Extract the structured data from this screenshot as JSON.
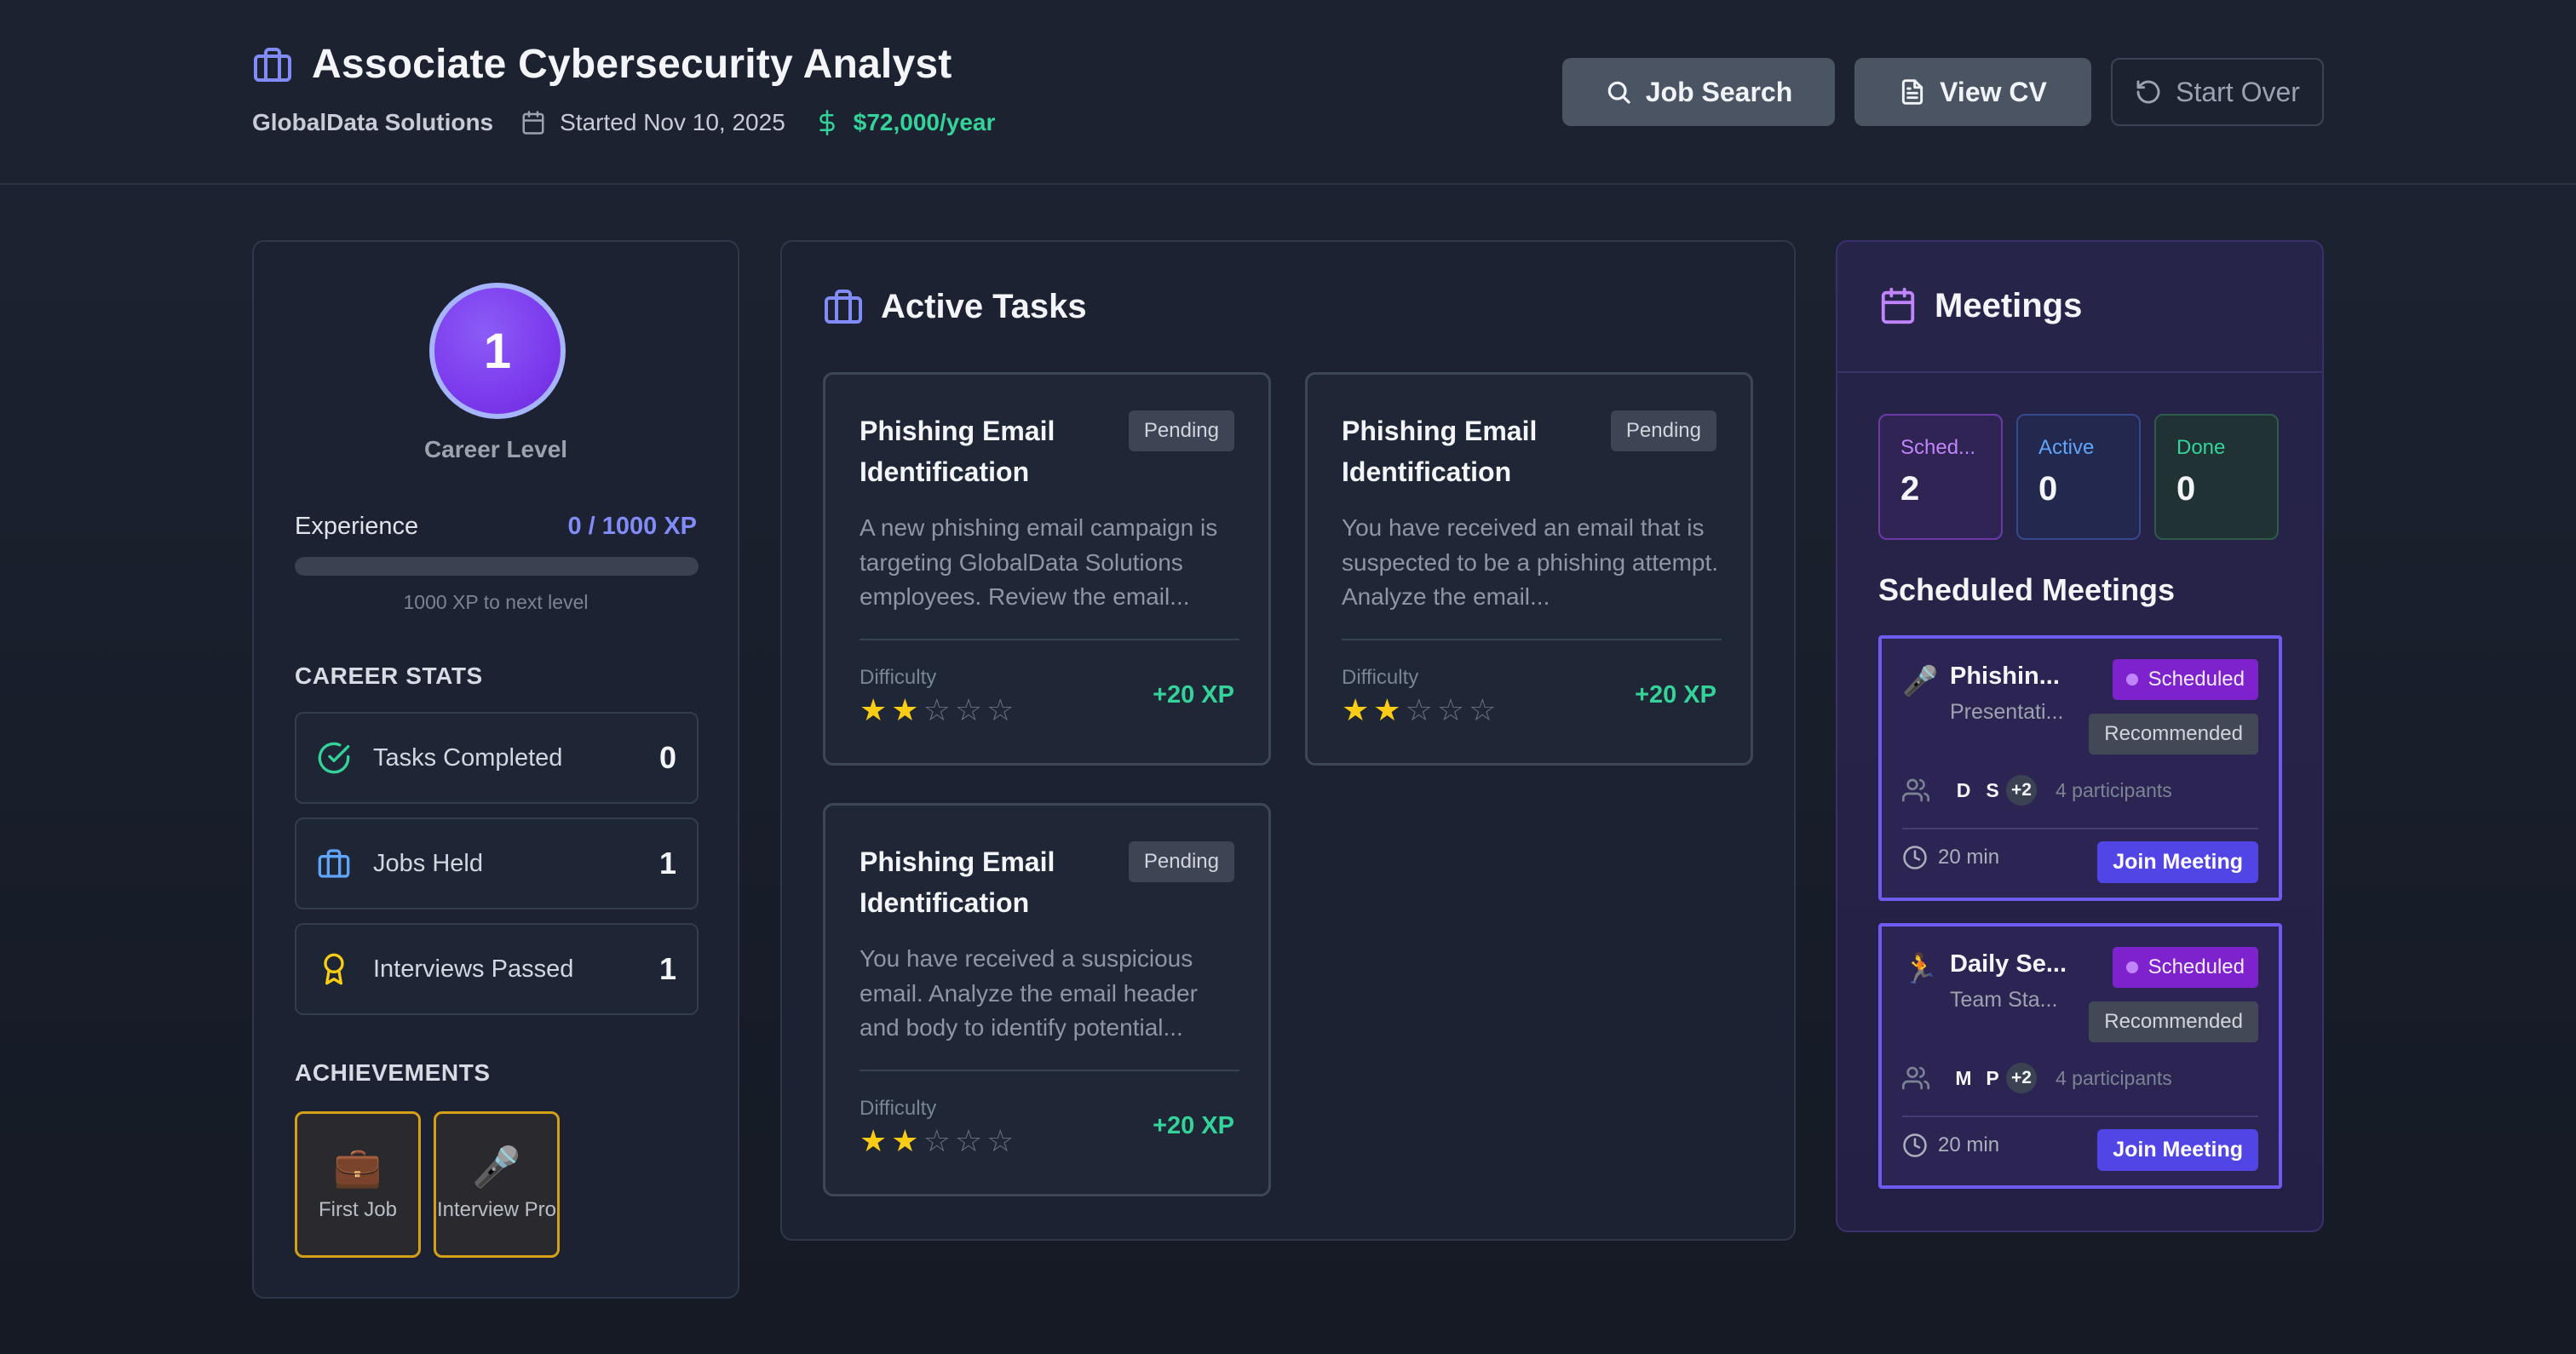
{
  "header": {
    "job_title": "Associate Cybersecurity Analyst",
    "company": "GlobalData Solutions",
    "started": "Started Nov 10, 2025",
    "salary": "$72,000/year",
    "buttons": {
      "job_search": "Job Search",
      "view_cv": "View CV",
      "start_over": "Start Over"
    }
  },
  "profile": {
    "level": "1",
    "level_label": "Career Level",
    "experience_label": "Experience",
    "experience_value": "0 / 1000 XP",
    "experience_progress": 0,
    "next_level_text": "1000 XP to next level"
  },
  "career_stats": {
    "heading": "CAREER STATS",
    "items": [
      {
        "label": "Tasks Completed",
        "value": "0",
        "icon": "check-circle-icon"
      },
      {
        "label": "Jobs Held",
        "value": "1",
        "icon": "briefcase-icon"
      },
      {
        "label": "Interviews Passed",
        "value": "1",
        "icon": "award-icon"
      }
    ]
  },
  "achievements": {
    "heading": "ACHIEVEMENTS",
    "items": [
      {
        "label": "First Job",
        "icon": "💼"
      },
      {
        "label": "Interview Pro",
        "icon": "🎤"
      }
    ]
  },
  "tasks": {
    "heading": "Active Tasks",
    "difficulty_label": "Difficulty",
    "items": [
      {
        "title": "Phishing Email Identification",
        "status": "Pending",
        "description": "A new phishing email campaign is targeting GlobalData Solutions employees. Review the email...",
        "difficulty": 2,
        "xp": "+20 XP"
      },
      {
        "title": "Phishing Email Identification",
        "status": "Pending",
        "description": "You have received an email that is suspected to be a phishing attempt. Analyze the email...",
        "difficulty": 2,
        "xp": "+20 XP"
      },
      {
        "title": "Phishing Email Identification",
        "status": "Pending",
        "description": "You have received a suspicious email. Analyze the email header and body to identify potential...",
        "difficulty": 2,
        "xp": "+20 XP"
      }
    ]
  },
  "meetings": {
    "heading": "Meetings",
    "stats": {
      "scheduled_label": "Sched...",
      "scheduled_value": "2",
      "active_label": "Active",
      "active_value": "0",
      "done_label": "Done",
      "done_value": "0"
    },
    "scheduled_heading": "Scheduled Meetings",
    "items": [
      {
        "icon": "🎤",
        "name": "Phishin...",
        "subtitle": "Presentati...",
        "status": "Scheduled",
        "tag": "Recommended",
        "avatars": [
          "D",
          "S"
        ],
        "more": "+2",
        "participants": "4 participants",
        "duration": "20 min",
        "join": "Join Meeting"
      },
      {
        "icon": "🏃",
        "name": "Daily Se...",
        "subtitle": "Team Sta...",
        "status": "Scheduled",
        "tag": "Recommended",
        "avatars": [
          "M",
          "P"
        ],
        "more": "+2",
        "participants": "4 participants",
        "duration": "20 min",
        "join": "Join Meeting"
      }
    ]
  },
  "colors": {
    "accent": "#818cf8",
    "success": "#34d399",
    "star": "#facc15",
    "scheduled": "#7e22ce",
    "join": "#5145e5"
  }
}
